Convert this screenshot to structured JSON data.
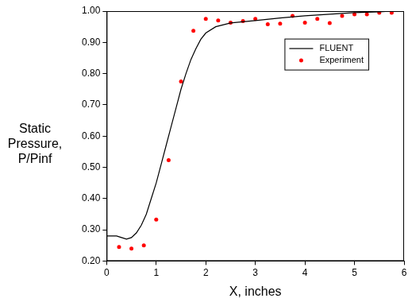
{
  "chart_data": {
    "type": "line",
    "xlabel": "X, inches",
    "ylabel": "Static Pressure, P/Pinf",
    "xlim": [
      0,
      6
    ],
    "xticks": [
      0,
      1,
      2,
      3,
      4,
      5,
      6
    ],
    "ylim": [
      0.2,
      1.0
    ],
    "yticks": [
      {
        "value": 0.2,
        "label": "0.20"
      },
      {
        "value": 0.3,
        "label": "0.30"
      },
      {
        "value": 0.4,
        "label": "0.40"
      },
      {
        "value": 0.5,
        "label": "0.50"
      },
      {
        "value": 0.6,
        "label": "0.60"
      },
      {
        "value": 0.7,
        "label": "0.70"
      },
      {
        "value": 0.8,
        "label": "0.80"
      },
      {
        "value": 0.9,
        "label": "0.90"
      },
      {
        "value": 1.0,
        "label": "1.00"
      }
    ],
    "grid": false,
    "legend": "upper right",
    "series": [
      {
        "name": "FLUENT",
        "type": "line",
        "color": "#000000",
        "marker": "none",
        "line_style": "solid",
        "x": [
          0,
          0.2,
          0.3,
          0.4,
          0.5,
          0.6,
          0.7,
          0.8,
          0.9,
          1.0,
          1.1,
          1.2,
          1.3,
          1.4,
          1.5,
          1.6,
          1.7,
          1.8,
          1.9,
          2.0,
          2.2,
          2.5,
          3.0,
          3.5,
          4.0,
          4.5,
          5.0,
          5.5,
          5.75
        ],
        "values": [
          0.28,
          0.28,
          0.275,
          0.27,
          0.275,
          0.29,
          0.315,
          0.35,
          0.4,
          0.45,
          0.51,
          0.57,
          0.63,
          0.69,
          0.75,
          0.8,
          0.845,
          0.88,
          0.91,
          0.93,
          0.95,
          0.962,
          0.97,
          0.978,
          0.985,
          0.99,
          0.995,
          0.998,
          1.0
        ]
      },
      {
        "name": "Experiment",
        "type": "scatter",
        "color": "#ff0000",
        "marker": "circle",
        "x": [
          0.25,
          0.5,
          0.75,
          1.0,
          1.25,
          1.5,
          1.75,
          2.0,
          2.25,
          2.5,
          2.75,
          3.0,
          3.25,
          3.5,
          3.75,
          4.0,
          4.25,
          4.5,
          4.75,
          5.0,
          5.25,
          5.5,
          5.75
        ],
        "values": [
          0.245,
          0.24,
          0.25,
          0.333,
          0.523,
          0.775,
          0.937,
          0.975,
          0.97,
          0.963,
          0.968,
          0.975,
          0.958,
          0.96,
          0.985,
          0.963,
          0.975,
          0.962,
          0.985,
          0.99,
          0.99,
          0.995,
          0.995
        ]
      }
    ]
  }
}
